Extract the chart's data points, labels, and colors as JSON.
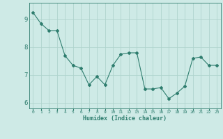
{
  "x": [
    0,
    1,
    2,
    3,
    4,
    5,
    6,
    7,
    8,
    9,
    10,
    11,
    12,
    13,
    14,
    15,
    16,
    17,
    18,
    19,
    20,
    21,
    22,
    23
  ],
  "y": [
    9.25,
    8.85,
    8.6,
    8.6,
    7.7,
    7.35,
    7.25,
    6.65,
    6.95,
    6.65,
    7.35,
    7.75,
    7.8,
    7.8,
    6.5,
    6.5,
    6.55,
    6.15,
    6.35,
    6.6,
    7.6,
    7.65,
    7.35,
    7.35
  ],
  "line_color": "#2e7d6e",
  "marker": "D",
  "marker_size": 2.0,
  "bg_color": "#ceeae6",
  "grid_color": "#afd4ce",
  "xlabel": "Humidex (Indice chaleur)",
  "xlabel_color": "#2e7d6e",
  "tick_color": "#2e7d6e",
  "ylim": [
    5.8,
    9.6
  ],
  "xlim": [
    -0.5,
    23.5
  ],
  "yticks": [
    6,
    7,
    8,
    9
  ],
  "xticks": [
    0,
    1,
    2,
    3,
    4,
    5,
    6,
    7,
    8,
    9,
    10,
    11,
    12,
    13,
    14,
    15,
    16,
    17,
    18,
    19,
    20,
    21,
    22,
    23
  ],
  "figsize": [
    3.2,
    2.0
  ],
  "dpi": 100
}
